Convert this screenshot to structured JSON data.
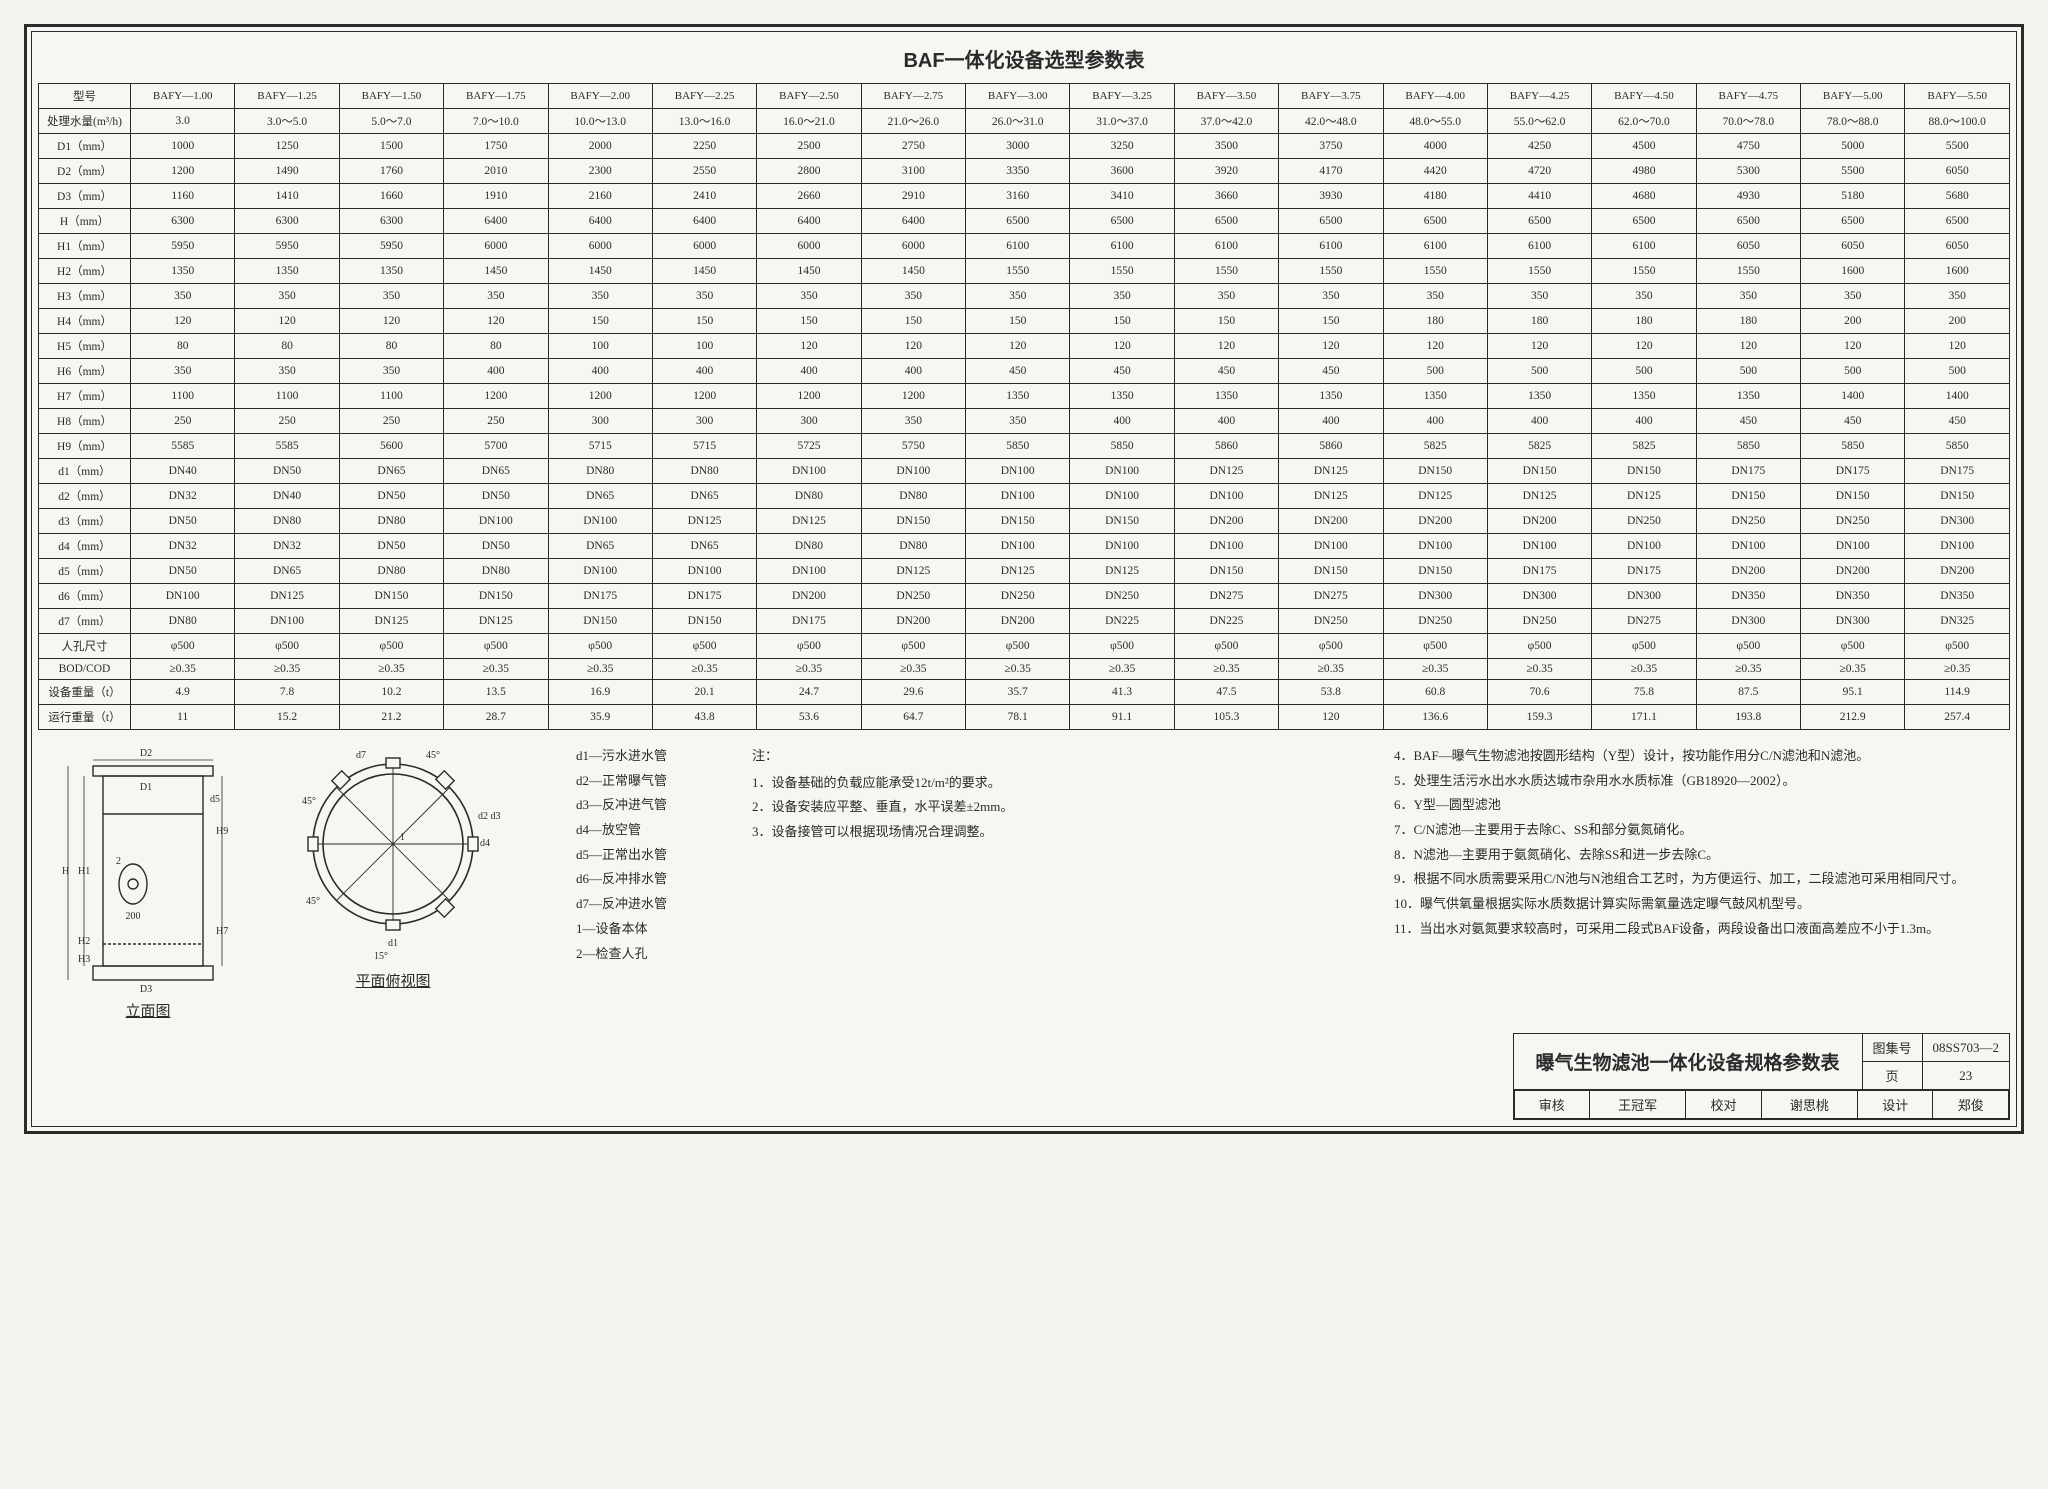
{
  "title": "BAF一体化设备选型参数表",
  "models": [
    "BAFY—1.00",
    "BAFY—1.25",
    "BAFY—1.50",
    "BAFY—1.75",
    "BAFY—2.00",
    "BAFY—2.25",
    "BAFY—2.50",
    "BAFY—2.75",
    "BAFY—3.00",
    "BAFY—3.25",
    "BAFY—3.50",
    "BAFY—3.75",
    "BAFY—4.00",
    "BAFY—4.25",
    "BAFY—4.50",
    "BAFY—4.75",
    "BAFY—5.00",
    "BAFY—5.50"
  ],
  "rows": [
    {
      "label": "型号",
      "kind": "model_header"
    },
    {
      "label": "处理水量(m³/h)",
      "values": [
        "3.0",
        "3.0～5.0",
        "5.0～7.0",
        "7.0～10.0",
        "10.0～13.0",
        "13.0～16.0",
        "16.0～21.0",
        "21.0～26.0",
        "26.0～31.0",
        "31.0～37.0",
        "37.0～42.0",
        "42.0～48.0",
        "48.0～55.0",
        "55.0～62.0",
        "62.0～70.0",
        "70.0～78.0",
        "78.0～88.0",
        "88.0～100.0"
      ]
    },
    {
      "label": "D1（mm）",
      "values": [
        "1000",
        "1250",
        "1500",
        "1750",
        "2000",
        "2250",
        "2500",
        "2750",
        "3000",
        "3250",
        "3500",
        "3750",
        "4000",
        "4250",
        "4500",
        "4750",
        "5000",
        "5500"
      ]
    },
    {
      "label": "D2（mm）",
      "values": [
        "1200",
        "1490",
        "1760",
        "2010",
        "2300",
        "2550",
        "2800",
        "3100",
        "3350",
        "3600",
        "3920",
        "4170",
        "4420",
        "4720",
        "4980",
        "5300",
        "5500",
        "6050"
      ]
    },
    {
      "label": "D3（mm）",
      "values": [
        "1160",
        "1410",
        "1660",
        "1910",
        "2160",
        "2410",
        "2660",
        "2910",
        "3160",
        "3410",
        "3660",
        "3930",
        "4180",
        "4410",
        "4680",
        "4930",
        "5180",
        "5680"
      ]
    },
    {
      "label": "H（mm）",
      "values": [
        "6300",
        "6300",
        "6300",
        "6400",
        "6400",
        "6400",
        "6400",
        "6400",
        "6500",
        "6500",
        "6500",
        "6500",
        "6500",
        "6500",
        "6500",
        "6500",
        "6500",
        "6500"
      ]
    },
    {
      "label": "H1（mm）",
      "values": [
        "5950",
        "5950",
        "5950",
        "6000",
        "6000",
        "6000",
        "6000",
        "6000",
        "6100",
        "6100",
        "6100",
        "6100",
        "6100",
        "6100",
        "6100",
        "6050",
        "6050",
        "6050"
      ]
    },
    {
      "label": "H2（mm）",
      "values": [
        "1350",
        "1350",
        "1350",
        "1450",
        "1450",
        "1450",
        "1450",
        "1450",
        "1550",
        "1550",
        "1550",
        "1550",
        "1550",
        "1550",
        "1550",
        "1550",
        "1600",
        "1600"
      ]
    },
    {
      "label": "H3（mm）",
      "values": [
        "350",
        "350",
        "350",
        "350",
        "350",
        "350",
        "350",
        "350",
        "350",
        "350",
        "350",
        "350",
        "350",
        "350",
        "350",
        "350",
        "350",
        "350"
      ]
    },
    {
      "label": "H4（mm）",
      "values": [
        "120",
        "120",
        "120",
        "120",
        "150",
        "150",
        "150",
        "150",
        "150",
        "150",
        "150",
        "150",
        "180",
        "180",
        "180",
        "180",
        "200",
        "200"
      ]
    },
    {
      "label": "H5（mm）",
      "values": [
        "80",
        "80",
        "80",
        "80",
        "100",
        "100",
        "120",
        "120",
        "120",
        "120",
        "120",
        "120",
        "120",
        "120",
        "120",
        "120",
        "120",
        "120"
      ]
    },
    {
      "label": "H6（mm）",
      "values": [
        "350",
        "350",
        "350",
        "400",
        "400",
        "400",
        "400",
        "400",
        "450",
        "450",
        "450",
        "450",
        "500",
        "500",
        "500",
        "500",
        "500",
        "500"
      ]
    },
    {
      "label": "H7（mm）",
      "values": [
        "1100",
        "1100",
        "1100",
        "1200",
        "1200",
        "1200",
        "1200",
        "1200",
        "1350",
        "1350",
        "1350",
        "1350",
        "1350",
        "1350",
        "1350",
        "1350",
        "1400",
        "1400"
      ]
    },
    {
      "label": "H8（mm）",
      "values": [
        "250",
        "250",
        "250",
        "250",
        "300",
        "300",
        "300",
        "350",
        "350",
        "400",
        "400",
        "400",
        "400",
        "400",
        "400",
        "450",
        "450",
        "450"
      ]
    },
    {
      "label": "H9（mm）",
      "values": [
        "5585",
        "5585",
        "5600",
        "5700",
        "5715",
        "5715",
        "5725",
        "5750",
        "5850",
        "5850",
        "5860",
        "5860",
        "5825",
        "5825",
        "5825",
        "5850",
        "5850",
        "5850"
      ]
    },
    {
      "label": "d1（mm）",
      "values": [
        "DN40",
        "DN50",
        "DN65",
        "DN65",
        "DN80",
        "DN80",
        "DN100",
        "DN100",
        "DN100",
        "DN100",
        "DN125",
        "DN125",
        "DN150",
        "DN150",
        "DN150",
        "DN175",
        "DN175",
        "DN175"
      ]
    },
    {
      "label": "d2（mm）",
      "values": [
        "DN32",
        "DN40",
        "DN50",
        "DN50",
        "DN65",
        "DN65",
        "DN80",
        "DN80",
        "DN100",
        "DN100",
        "DN100",
        "DN125",
        "DN125",
        "DN125",
        "DN125",
        "DN150",
        "DN150",
        "DN150"
      ]
    },
    {
      "label": "d3（mm）",
      "values": [
        "DN50",
        "DN80",
        "DN80",
        "DN100",
        "DN100",
        "DN125",
        "DN125",
        "DN150",
        "DN150",
        "DN150",
        "DN200",
        "DN200",
        "DN200",
        "DN200",
        "DN250",
        "DN250",
        "DN250",
        "DN300"
      ]
    },
    {
      "label": "d4（mm）",
      "values": [
        "DN32",
        "DN32",
        "DN50",
        "DN50",
        "DN65",
        "DN65",
        "DN80",
        "DN80",
        "DN100",
        "DN100",
        "DN100",
        "DN100",
        "DN100",
        "DN100",
        "DN100",
        "DN100",
        "DN100",
        "DN100"
      ]
    },
    {
      "label": "d5（mm）",
      "values": [
        "DN50",
        "DN65",
        "DN80",
        "DN80",
        "DN100",
        "DN100",
        "DN100",
        "DN125",
        "DN125",
        "DN125",
        "DN150",
        "DN150",
        "DN150",
        "DN175",
        "DN175",
        "DN200",
        "DN200",
        "DN200"
      ]
    },
    {
      "label": "d6（mm）",
      "values": [
        "DN100",
        "DN125",
        "DN150",
        "DN150",
        "DN175",
        "DN175",
        "DN200",
        "DN250",
        "DN250",
        "DN250",
        "DN275",
        "DN275",
        "DN300",
        "DN300",
        "DN300",
        "DN350",
        "DN350",
        "DN350"
      ]
    },
    {
      "label": "d7（mm）",
      "values": [
        "DN80",
        "DN100",
        "DN125",
        "DN125",
        "DN150",
        "DN150",
        "DN175",
        "DN200",
        "DN200",
        "DN225",
        "DN225",
        "DN250",
        "DN250",
        "DN250",
        "DN275",
        "DN300",
        "DN300",
        "DN325"
      ]
    },
    {
      "label": "人孔尺寸",
      "values": [
        "φ500",
        "φ500",
        "φ500",
        "φ500",
        "φ500",
        "φ500",
        "φ500",
        "φ500",
        "φ500",
        "φ500",
        "φ500",
        "φ500",
        "φ500",
        "φ500",
        "φ500",
        "φ500",
        "φ500",
        "φ500"
      ]
    },
    {
      "label": "BOD/COD",
      "values": [
        "≥0.35",
        "≥0.35",
        "≥0.35",
        "≥0.35",
        "≥0.35",
        "≥0.35",
        "≥0.35",
        "≥0.35",
        "≥0.35",
        "≥0.35",
        "≥0.35",
        "≥0.35",
        "≥0.35",
        "≥0.35",
        "≥0.35",
        "≥0.35",
        "≥0.35",
        "≥0.35"
      ]
    },
    {
      "label": "设备重量（t）",
      "values": [
        "4.9",
        "7.8",
        "10.2",
        "13.5",
        "16.9",
        "20.1",
        "24.7",
        "29.6",
        "35.7",
        "41.3",
        "47.5",
        "53.8",
        "60.8",
        "70.6",
        "75.8",
        "87.5",
        "95.1",
        "114.9"
      ]
    },
    {
      "label": "运行重量（t）",
      "values": [
        "11",
        "15.2",
        "21.2",
        "28.7",
        "35.9",
        "43.8",
        "53.6",
        "64.7",
        "78.1",
        "91.1",
        "105.3",
        "120",
        "136.6",
        "159.3",
        "171.1",
        "193.8",
        "212.9",
        "257.4"
      ]
    }
  ],
  "legend": [
    "d1—污水进水管",
    "d2—正常曝气管",
    "d3—反冲进气管",
    "d4—放空管",
    "d5—正常出水管",
    "d6—反冲排水管",
    "d7—反冲进水管",
    "1—设备本体",
    "2—检查人孔"
  ],
  "notes_header": "注：",
  "notes_left": [
    "1．设备基础的负载应能承受12t/m²的要求。",
    "2．设备安装应平整、垂直，水平误差±2mm。",
    "3．设备接管可以根据现场情况合理调整。"
  ],
  "notes_right": [
    "4．BAF—曝气生物滤池按圆形结构（Y型）设计，按功能作用分C/N滤池和N滤池。",
    "5．处理生活污水出水水质达城市杂用水水质标准（GB18920—2002）。",
    "6．Y型—圆型滤池",
    "7．C/N滤池—主要用于去除C、SS和部分氨氮硝化。",
    "8．N滤池—主要用于氨氮硝化、去除SS和进一步去除C。",
    "9．根据不同水质需要采用C/N池与N池组合工艺时，为方便运行、加工，二段滤池可采用相同尺寸。",
    "10．曝气供氧量根据实际水质数据计算实际需氧量选定曝气鼓风机型号。",
    "11．当出水对氨氮要求较高时，可采用二段式BAF设备，两段设备出口液面高差应不小于1.3m。"
  ],
  "fig_elevation": "立面图",
  "fig_plan": "平面俯视图",
  "titleblock": {
    "doc_title": "曝气生物滤池一体化设备规格参数表",
    "atlas_label": "图集号",
    "atlas_no": "08SS703—2",
    "reviewer_label": "审核",
    "reviewer": "王冠军",
    "checker_label": "校对",
    "checker": "谢思桃",
    "designer_label": "设计",
    "designer": "郑俊",
    "page_label": "页",
    "page_no": "23"
  },
  "elev_labels": {
    "D1": "D1",
    "D2": "D2",
    "D3": "D3",
    "H": "H",
    "H1": "H1",
    "H2": "H2",
    "H3": "H3",
    "H7": "H7",
    "H9": "H9",
    "d5": "d5",
    "d7": "d7",
    "d1": "d1",
    "d2": "d2",
    "d3": "d3",
    "d4": "d4",
    "a45": "45°",
    "a15": "15°",
    "n1": "1",
    "n2": "2",
    "n200": "200"
  }
}
